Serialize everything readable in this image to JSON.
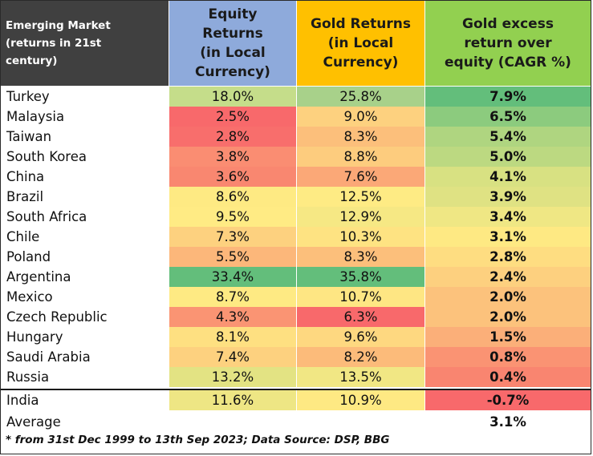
{
  "header": {
    "market": "Emerging Market\n(returns in 21st\ncentury)",
    "equity": "Equity\nReturns\n(in Local\nCurrency)",
    "gold": "Gold Returns\n(in Local\nCurrency)",
    "excess": "Gold excess\nreturn over\nequity (CAGR %)"
  },
  "rows": [
    {
      "name": "Turkey",
      "equity": "18.0%",
      "gold": "25.8%",
      "excess": "7.9%",
      "eq_color": "#c5dd8a",
      "gd_color": "#a8d18a",
      "ex_color": "#63be7b"
    },
    {
      "name": "Malaysia",
      "equity": "2.5%",
      "gold": "9.0%",
      "excess": "6.5%",
      "eq_color": "#f8696b",
      "gd_color": "#fdd17f",
      "ex_color": "#8ccb7e"
    },
    {
      "name": "Taiwan",
      "equity": "2.8%",
      "gold": "8.3%",
      "excess": "5.4%",
      "eq_color": "#f86e6c",
      "gd_color": "#fcbf7b",
      "ex_color": "#afd580"
    },
    {
      "name": "South Korea",
      "equity": "3.8%",
      "gold": "8.8%",
      "excess": "5.0%",
      "eq_color": "#fa8d72",
      "gd_color": "#fdcc7e",
      "ex_color": "#bcd981"
    },
    {
      "name": "China",
      "equity": "3.6%",
      "gold": "7.6%",
      "excess": "4.1%",
      "eq_color": "#f98770",
      "gd_color": "#fba877",
      "ex_color": "#d8e182"
    },
    {
      "name": "Brazil",
      "equity": "8.6%",
      "gold": "12.5%",
      "excess": "3.9%",
      "eq_color": "#feea83",
      "gd_color": "#feeb84",
      "ex_color": "#dfe283"
    },
    {
      "name": "South Africa",
      "equity": "9.5%",
      "gold": "12.9%",
      "excess": "3.4%",
      "eq_color": "#ffeb84",
      "gd_color": "#f6e884",
      "ex_color": "#efe784"
    },
    {
      "name": "Chile",
      "equity": "7.3%",
      "gold": "10.3%",
      "excess": "3.1%",
      "eq_color": "#fdd17f",
      "gd_color": "#fee382",
      "ex_color": "#fee983"
    },
    {
      "name": "Poland",
      "equity": "5.5%",
      "gold": "8.3%",
      "excess": "2.8%",
      "eq_color": "#fcb77a",
      "gd_color": "#fcbf7b",
      "ex_color": "#fedd81"
    },
    {
      "name": "Argentina",
      "equity": "33.4%",
      "gold": "35.8%",
      "excess": "2.4%",
      "eq_color": "#63be7b",
      "gd_color": "#63be7b",
      "ex_color": "#fdd07f"
    },
    {
      "name": "Mexico",
      "equity": "8.7%",
      "gold": "10.7%",
      "excess": "2.0%",
      "eq_color": "#feea83",
      "gd_color": "#fee683",
      "ex_color": "#fcc27c"
    },
    {
      "name": "Czech Republic",
      "equity": "4.3%",
      "gold": "6.3%",
      "excess": "2.0%",
      "eq_color": "#fa9473",
      "gd_color": "#f8696b",
      "ex_color": "#fcc27c"
    },
    {
      "name": "Hungary",
      "equity": "8.1%",
      "gold": "9.6%",
      "excess": "1.5%",
      "eq_color": "#fee081",
      "gd_color": "#fed880",
      "ex_color": "#fbaf79"
    },
    {
      "name": "Saudi Arabia",
      "equity": "7.4%",
      "gold": "8.2%",
      "excess": "0.8%",
      "eq_color": "#fdd17f",
      "gd_color": "#fcbb7a",
      "ex_color": "#fa9373"
    },
    {
      "name": "Russia",
      "equity": "13.2%",
      "gold": "13.5%",
      "excess": "0.4%",
      "eq_color": "#e3e383",
      "gd_color": "#f1e784",
      "ex_color": "#f98570"
    },
    {
      "name": "India",
      "equity": "11.6%",
      "gold": "10.9%",
      "excess": "-0.7%",
      "eq_color": "#eee684",
      "gd_color": "#fee983",
      "ex_color": "#f8696b"
    }
  ],
  "average": {
    "label": "Average",
    "value": "3.1%"
  },
  "footnote": "* from 31st Dec 1999 to 13th Sep 2023; Data Source: DSP, BBG"
}
